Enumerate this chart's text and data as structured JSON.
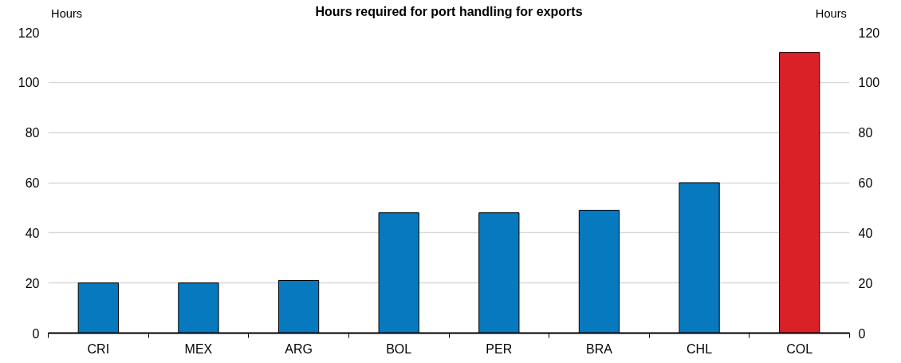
{
  "chart_data": {
    "type": "bar",
    "title": "Hours required for port handling for exports",
    "ylabel": "Hours",
    "y2label": "Hours",
    "categories": [
      "CRI",
      "MEX",
      "ARG",
      "BOL",
      "PER",
      "BRA",
      "CHL",
      "COL"
    ],
    "values": [
      20,
      20,
      21,
      48,
      48,
      49,
      60,
      112
    ],
    "colors": [
      "#0779bf",
      "#0779bf",
      "#0779bf",
      "#0779bf",
      "#0779bf",
      "#0779bf",
      "#0779bf",
      "#da2128"
    ],
    "ylim": [
      0,
      120
    ],
    "yticks": [
      0,
      20,
      40,
      60,
      80,
      100,
      120
    ],
    "y2lim": [
      0,
      120
    ],
    "y2ticks": [
      0,
      20,
      40,
      60,
      80,
      100,
      120
    ],
    "grid": "y"
  }
}
